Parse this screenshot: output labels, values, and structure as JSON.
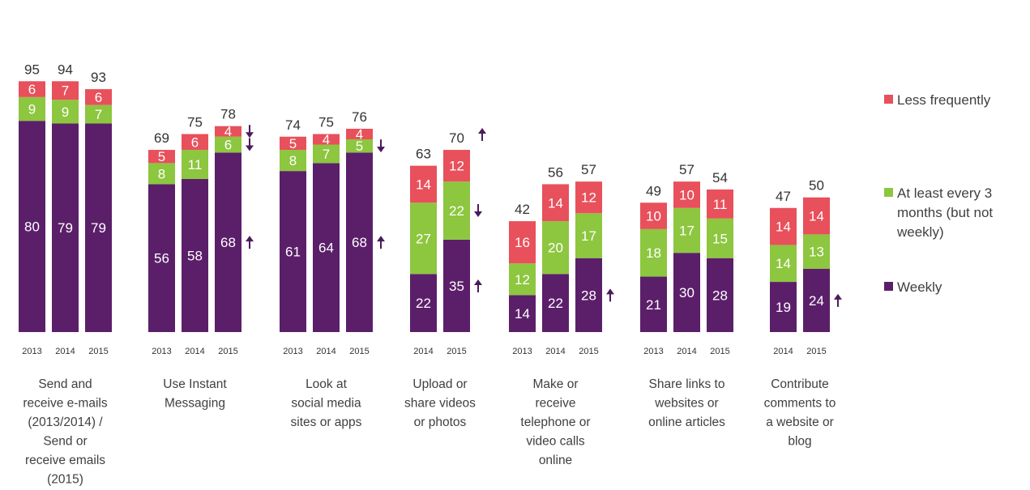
{
  "chart_data": {
    "type": "bar",
    "stacked": true,
    "colors": {
      "Weekly": "#5b1f6a",
      "At least every 3 months (but not weekly)": "#8dc63f",
      "Less frequently": "#e8505b"
    },
    "series_order": [
      "Weekly",
      "At least every 3 months (but not weekly)",
      "Less frequently"
    ],
    "legend": {
      "placement": "right",
      "entries": [
        "Less frequently",
        "At least every 3 months (but not weekly)",
        "Weekly"
      ]
    },
    "groups": [
      {
        "label": "Send and receive e-mails (2013/2014) / Send or receive emails (2015)",
        "label_lines": [
          "Send and",
          "receive e-mails",
          "(2013/2014) /",
          "Send or",
          "receive emails",
          "(2015)"
        ],
        "bars": [
          {
            "year": "2013",
            "total": 95,
            "values": [
              80,
              9,
              6
            ],
            "arrows": [
              null,
              null,
              null
            ]
          },
          {
            "year": "2014",
            "total": 94,
            "values": [
              79,
              9,
              7
            ],
            "arrows": [
              null,
              null,
              null
            ]
          },
          {
            "year": "2015",
            "total": 93,
            "values": [
              79,
              7,
              6
            ],
            "arrows": [
              null,
              null,
              null
            ]
          }
        ]
      },
      {
        "label": "Use Instant Messaging",
        "label_lines": [
          "Use Instant",
          "Messaging"
        ],
        "bars": [
          {
            "year": "2013",
            "total": 69,
            "values": [
              56,
              8,
              5
            ],
            "arrows": [
              null,
              null,
              null
            ]
          },
          {
            "year": "2014",
            "total": 75,
            "values": [
              58,
              11,
              6
            ],
            "arrows": [
              null,
              null,
              null
            ]
          },
          {
            "year": "2015",
            "total": 78,
            "values": [
              68,
              6,
              4
            ],
            "arrows": [
              "up",
              "down",
              "down"
            ]
          }
        ]
      },
      {
        "label": "Look at social media sites or apps",
        "label_lines": [
          "Look at",
          "social media",
          "sites or apps"
        ],
        "bars": [
          {
            "year": "2013",
            "total": 74,
            "values": [
              61,
              8,
              5
            ],
            "arrows": [
              null,
              null,
              null
            ]
          },
          {
            "year": "2014",
            "total": 75,
            "values": [
              64,
              7,
              4
            ],
            "arrows": [
              null,
              null,
              null
            ]
          },
          {
            "year": "2015",
            "total": 76,
            "values": [
              68,
              5,
              4
            ],
            "arrows": [
              "up",
              "down",
              null
            ]
          }
        ]
      },
      {
        "label": "Upload or share videos or photos",
        "label_lines": [
          "Upload or",
          "share videos",
          "or photos"
        ],
        "bars": [
          {
            "year": "2014",
            "total": 63,
            "values": [
              22,
              27,
              14
            ],
            "arrows": [
              null,
              null,
              null
            ]
          },
          {
            "year": "2015",
            "total": 70,
            "values": [
              35,
              22,
              12
            ],
            "arrows": [
              "up",
              "down",
              null
            ],
            "total_arrow": "up"
          }
        ]
      },
      {
        "label": "Make or receive telephone or video calls online",
        "label_lines": [
          "Make or",
          "receive",
          "telephone or",
          "video calls",
          "online"
        ],
        "bars": [
          {
            "year": "2013",
            "total": 42,
            "values": [
              14,
              12,
              16
            ],
            "arrows": [
              null,
              null,
              null
            ]
          },
          {
            "year": "2014",
            "total": 56,
            "values": [
              22,
              20,
              14
            ],
            "arrows": [
              null,
              null,
              null
            ]
          },
          {
            "year": "2015",
            "total": 57,
            "values": [
              28,
              17,
              12
            ],
            "arrows": [
              "up",
              null,
              null
            ]
          }
        ]
      },
      {
        "label": "Share links to websites or online articles",
        "label_lines": [
          "Share links to",
          "websites or",
          "online articles"
        ],
        "bars": [
          {
            "year": "2013",
            "total": 49,
            "values": [
              21,
              18,
              10
            ],
            "arrows": [
              null,
              null,
              null
            ]
          },
          {
            "year": "2014",
            "total": 57,
            "values": [
              30,
              17,
              10
            ],
            "arrows": [
              null,
              null,
              null
            ]
          },
          {
            "year": "2015",
            "total": 54,
            "values": [
              28,
              15,
              11
            ],
            "arrows": [
              null,
              null,
              null
            ]
          }
        ]
      },
      {
        "label": "Contribute comments to a website or blog",
        "label_lines": [
          "Contribute",
          "comments to",
          "a website or",
          "blog"
        ],
        "bars": [
          {
            "year": "2014",
            "total": 47,
            "values": [
              19,
              14,
              14
            ],
            "arrows": [
              null,
              null,
              null
            ]
          },
          {
            "year": "2015",
            "total": 50,
            "values": [
              24,
              13,
              14
            ],
            "arrows": [
              "up",
              null,
              null
            ]
          }
        ]
      }
    ]
  }
}
